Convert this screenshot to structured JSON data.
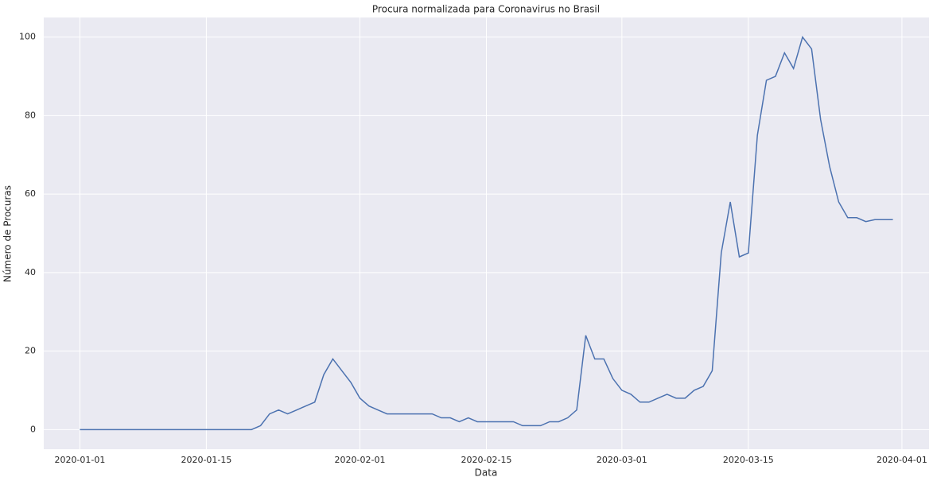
{
  "chart_data": {
    "type": "line",
    "title": "Procura normalizada para Coronavirus no Brasil",
    "x_label": "Data",
    "y_label": "Número de Procuras",
    "x": [
      "2020-01-01",
      "2020-01-02",
      "2020-01-03",
      "2020-01-04",
      "2020-01-05",
      "2020-01-06",
      "2020-01-07",
      "2020-01-08",
      "2020-01-09",
      "2020-01-10",
      "2020-01-11",
      "2020-01-12",
      "2020-01-13",
      "2020-01-14",
      "2020-01-15",
      "2020-01-16",
      "2020-01-17",
      "2020-01-18",
      "2020-01-19",
      "2020-01-20",
      "2020-01-21",
      "2020-01-22",
      "2020-01-23",
      "2020-01-24",
      "2020-01-25",
      "2020-01-26",
      "2020-01-27",
      "2020-01-28",
      "2020-01-29",
      "2020-01-30",
      "2020-01-31",
      "2020-02-01",
      "2020-02-02",
      "2020-02-03",
      "2020-02-04",
      "2020-02-05",
      "2020-02-06",
      "2020-02-07",
      "2020-02-08",
      "2020-02-09",
      "2020-02-10",
      "2020-02-11",
      "2020-02-12",
      "2020-02-13",
      "2020-02-14",
      "2020-02-15",
      "2020-02-16",
      "2020-02-17",
      "2020-02-18",
      "2020-02-19",
      "2020-02-20",
      "2020-02-21",
      "2020-02-22",
      "2020-02-23",
      "2020-02-24",
      "2020-02-25",
      "2020-02-26",
      "2020-02-27",
      "2020-02-28",
      "2020-02-29",
      "2020-03-01",
      "2020-03-02",
      "2020-03-03",
      "2020-03-04",
      "2020-03-05",
      "2020-03-06",
      "2020-03-07",
      "2020-03-08",
      "2020-03-09",
      "2020-03-10",
      "2020-03-11",
      "2020-03-12",
      "2020-03-13",
      "2020-03-14",
      "2020-03-15",
      "2020-03-16",
      "2020-03-17",
      "2020-03-18",
      "2020-03-19",
      "2020-03-20",
      "2020-03-21",
      "2020-03-22",
      "2020-03-23",
      "2020-03-24",
      "2020-03-25",
      "2020-03-26",
      "2020-03-27",
      "2020-03-28",
      "2020-03-29",
      "2020-03-30",
      "2020-03-31"
    ],
    "values": [
      0,
      0,
      0,
      0,
      0,
      0,
      0,
      0,
      0,
      0,
      0,
      0,
      0,
      0,
      0,
      0,
      0,
      0,
      0,
      0,
      1,
      4,
      5,
      4,
      5,
      6,
      7,
      14,
      18,
      15,
      12,
      8,
      6,
      5,
      4,
      4,
      4,
      4,
      4,
      4,
      3,
      3,
      2,
      3,
      2,
      2,
      2,
      2,
      2,
      1,
      1,
      1,
      2,
      2,
      3,
      5,
      24,
      18,
      18,
      13,
      10,
      9,
      7,
      7,
      8,
      9,
      8,
      8,
      10,
      11,
      15,
      45,
      58,
      44,
      45,
      75,
      89,
      90,
      96,
      92,
      100,
      97,
      79,
      67,
      58,
      54,
      54,
      53,
      53.5,
      53.5,
      53.5
    ],
    "color": "#4c72b0",
    "xlim": [
      "2019-12-28",
      "2020-04-04"
    ],
    "xticks": [
      "2020-01-01",
      "2020-01-15",
      "2020-02-01",
      "2020-02-15",
      "2020-03-01",
      "2020-03-15",
      "2020-04-01"
    ],
    "ylim": [
      -5,
      105
    ],
    "yticks": [
      0,
      20,
      40,
      60,
      80,
      100
    ],
    "grid": true
  }
}
